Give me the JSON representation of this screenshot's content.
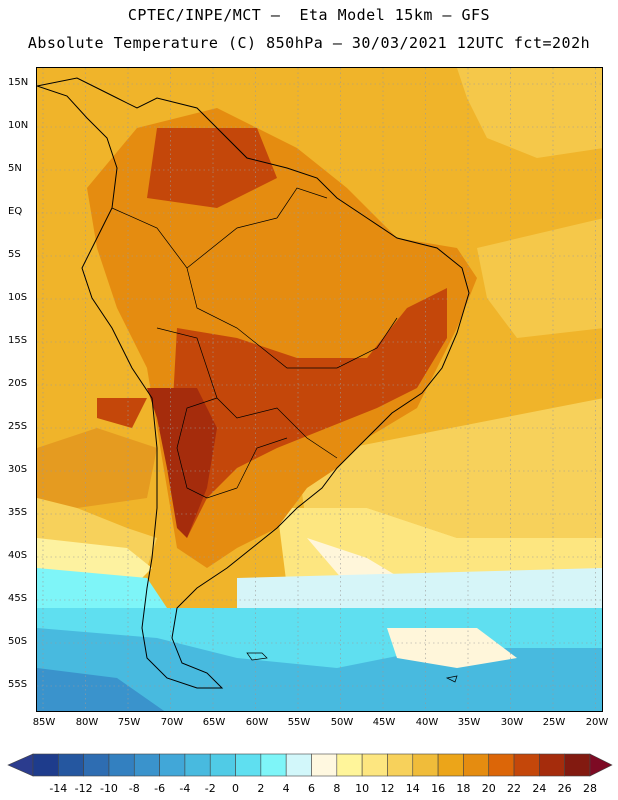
{
  "title_line1": "CPTEC/INPE/MCT –  Eta Model 15km – GFS",
  "title_line2": "Absolute Temperature (C) 850hPa – 30/03/2021 12UTC fct=202h",
  "lat_labels": [
    "15N",
    "10N",
    "5N",
    "EQ",
    "5S",
    "10S",
    "15S",
    "20S",
    "25S",
    "30S",
    "35S",
    "40S",
    "45S",
    "50S",
    "55S"
  ],
  "lon_labels": [
    "85W",
    "80W",
    "75W",
    "70W",
    "65W",
    "60W",
    "55W",
    "50W",
    "45W",
    "40W",
    "35W",
    "30W",
    "25W",
    "20W"
  ],
  "colorbar": {
    "labels": [
      "-14",
      "-12",
      "-10",
      "-8",
      "-6",
      "-4",
      "-2",
      "0",
      "2",
      "4",
      "6",
      "8",
      "10",
      "12",
      "14",
      "16",
      "18",
      "20",
      "22",
      "24",
      "26",
      "28"
    ],
    "colors": [
      "#1e3c8c",
      "#2557a0",
      "#2e6db2",
      "#3380c0",
      "#3a93cc",
      "#41a7d8",
      "#48badf",
      "#50cbe6",
      "#5fdff0",
      "#7ef5f8",
      "#d2f7fa",
      "#fff8e0",
      "#fff59a",
      "#fde680",
      "#f7d15b",
      "#f0bc3a",
      "#eca519",
      "#e58c10",
      "#dc6608",
      "#c4470a",
      "#a52c0c",
      "#821a10"
    ],
    "under_color": "#2b3c8e",
    "over_color": "#7d0a24"
  }
}
